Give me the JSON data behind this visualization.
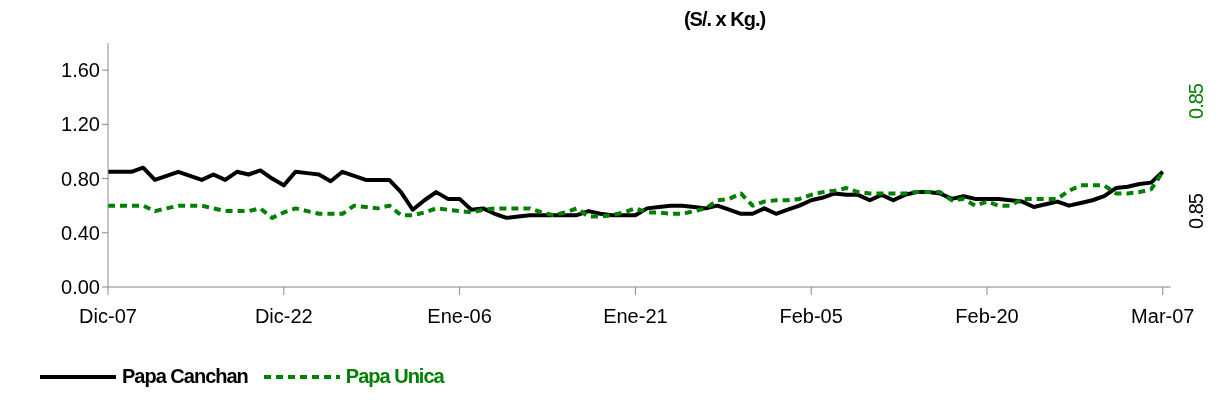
{
  "chart_data": {
    "type": "line",
    "title": "(S/. x Kg.)",
    "categories": [
      "Dic-07",
      null,
      null,
      null,
      null,
      null,
      null,
      null,
      null,
      null,
      null,
      null,
      null,
      null,
      null,
      "Dic-22",
      null,
      null,
      null,
      null,
      null,
      null,
      null,
      null,
      null,
      null,
      null,
      null,
      null,
      null,
      "Ene-06",
      null,
      null,
      null,
      null,
      null,
      null,
      null,
      null,
      null,
      null,
      null,
      null,
      null,
      null,
      "Ene-21",
      null,
      null,
      null,
      null,
      null,
      null,
      null,
      null,
      null,
      null,
      null,
      null,
      null,
      null,
      "Feb-05",
      null,
      null,
      null,
      null,
      null,
      null,
      null,
      null,
      null,
      null,
      null,
      null,
      null,
      null,
      "Feb-20",
      null,
      null,
      null,
      null,
      null,
      null,
      null,
      null,
      null,
      null,
      null,
      null,
      null,
      null,
      "Mar-07"
    ],
    "ylim": [
      0,
      1.8
    ],
    "yticks": [
      {
        "value": 0,
        "label": "0.00"
      },
      {
        "value": 0.4,
        "label": "0.40"
      },
      {
        "value": 0.8,
        "label": "0.80"
      },
      {
        "value": 1.2,
        "label": "1.20"
      },
      {
        "value": 1.6,
        "label": "1.60"
      }
    ],
    "grid": false,
    "legend": "bottom left",
    "marker": "none",
    "annotations": [
      "0.85",
      "0.85"
    ],
    "series": [
      {
        "name": "Papa Canchan",
        "color": "#000000",
        "line_style": "solid",
        "values": [
          0.85,
          0.85,
          0.85,
          0.88,
          0.79,
          0.82,
          0.85,
          0.82,
          0.79,
          0.83,
          0.79,
          0.85,
          0.83,
          0.86,
          0.8,
          0.75,
          0.85,
          0.84,
          0.83,
          0.78,
          0.85,
          0.82,
          0.79,
          0.79,
          0.79,
          0.7,
          0.57,
          0.64,
          0.7,
          0.65,
          0.65,
          0.57,
          0.58,
          0.54,
          0.51,
          0.52,
          0.53,
          0.53,
          0.53,
          0.53,
          0.53,
          0.56,
          0.54,
          0.53,
          0.53,
          0.53,
          0.58,
          0.59,
          0.6,
          0.6,
          0.59,
          0.58,
          0.6,
          0.57,
          0.54,
          0.54,
          0.58,
          0.54,
          0.57,
          0.6,
          0.64,
          0.66,
          0.69,
          0.68,
          0.68,
          0.64,
          0.68,
          0.64,
          0.68,
          0.7,
          0.7,
          0.69,
          0.65,
          0.67,
          0.65,
          0.65,
          0.65,
          0.64,
          0.63,
          0.59,
          0.61,
          0.63,
          0.6,
          0.62,
          0.64,
          0.67,
          0.73,
          0.74,
          0.76,
          0.77,
          0.85
        ]
      },
      {
        "name": "Papa Unica",
        "color": "#008000",
        "line_style": "dashed",
        "values": [
          0.6,
          0.6,
          0.6,
          0.6,
          0.56,
          0.58,
          0.6,
          0.6,
          0.6,
          0.58,
          0.56,
          0.56,
          0.56,
          0.58,
          0.51,
          0.55,
          0.58,
          0.56,
          0.54,
          0.54,
          0.54,
          0.6,
          0.59,
          0.58,
          0.6,
          0.53,
          0.53,
          0.55,
          0.58,
          0.57,
          0.56,
          0.55,
          0.57,
          0.58,
          0.58,
          0.58,
          0.58,
          0.55,
          0.53,
          0.55,
          0.58,
          0.52,
          0.52,
          0.53,
          0.55,
          0.58,
          0.55,
          0.55,
          0.54,
          0.54,
          0.56,
          0.58,
          0.64,
          0.65,
          0.69,
          0.6,
          0.63,
          0.64,
          0.64,
          0.65,
          0.68,
          0.7,
          0.71,
          0.73,
          0.7,
          0.69,
          0.69,
          0.69,
          0.69,
          0.7,
          0.7,
          0.7,
          0.64,
          0.65,
          0.6,
          0.63,
          0.6,
          0.6,
          0.65,
          0.65,
          0.65,
          0.65,
          0.71,
          0.75,
          0.75,
          0.75,
          0.69,
          0.69,
          0.7,
          0.72,
          0.85
        ]
      }
    ]
  }
}
